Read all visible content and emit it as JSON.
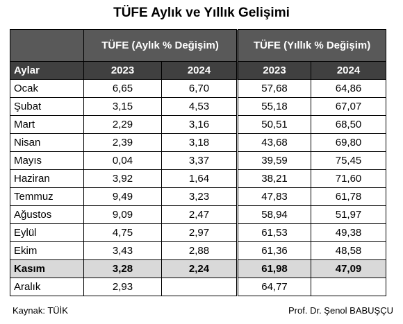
{
  "header": {
    "title": "TÜFE Aylık ve Yıllık Gelişimi"
  },
  "table": {
    "group_headers": [
      "TÜFE (Aylık % Değişim)",
      "TÜFE (Yıllık % Değişim)"
    ],
    "columns": [
      "Aylar",
      "2023",
      "2024",
      "2023",
      "2024"
    ],
    "rows": [
      [
        "Ocak",
        "6,65",
        "6,70",
        "57,68",
        "64,86"
      ],
      [
        "Şubat",
        "3,15",
        "4,53",
        "55,18",
        "67,07"
      ],
      [
        "Mart",
        "2,29",
        "3,16",
        "50,51",
        "68,50"
      ],
      [
        "Nisan",
        "2,39",
        "3,18",
        "43,68",
        "69,80"
      ],
      [
        "Mayıs",
        "0,04",
        "3,37",
        "39,59",
        "75,45"
      ],
      [
        "Haziran",
        "3,92",
        "1,64",
        "38,21",
        "71,60"
      ],
      [
        "Temmuz",
        "9,49",
        "3,23",
        "47,83",
        "61,78"
      ],
      [
        "Ağustos",
        "9,09",
        "2,47",
        "58,94",
        "51,97"
      ],
      [
        "Eylül",
        "4,75",
        "2,97",
        "61,53",
        "49,38"
      ],
      [
        "Ekim",
        "3,43",
        "2,88",
        "61,36",
        "48,58"
      ],
      [
        "Kasım",
        "3,28",
        "2,24",
        "61,98",
        "47,09"
      ],
      [
        "Aralık",
        "2,93",
        null,
        "64,77",
        null
      ]
    ],
    "highlighted_rows": [
      10
    ]
  },
  "footer": {
    "source": "Kaynak: TÜİK",
    "author": "Prof. Dr. Şenol BABUŞÇU"
  }
}
